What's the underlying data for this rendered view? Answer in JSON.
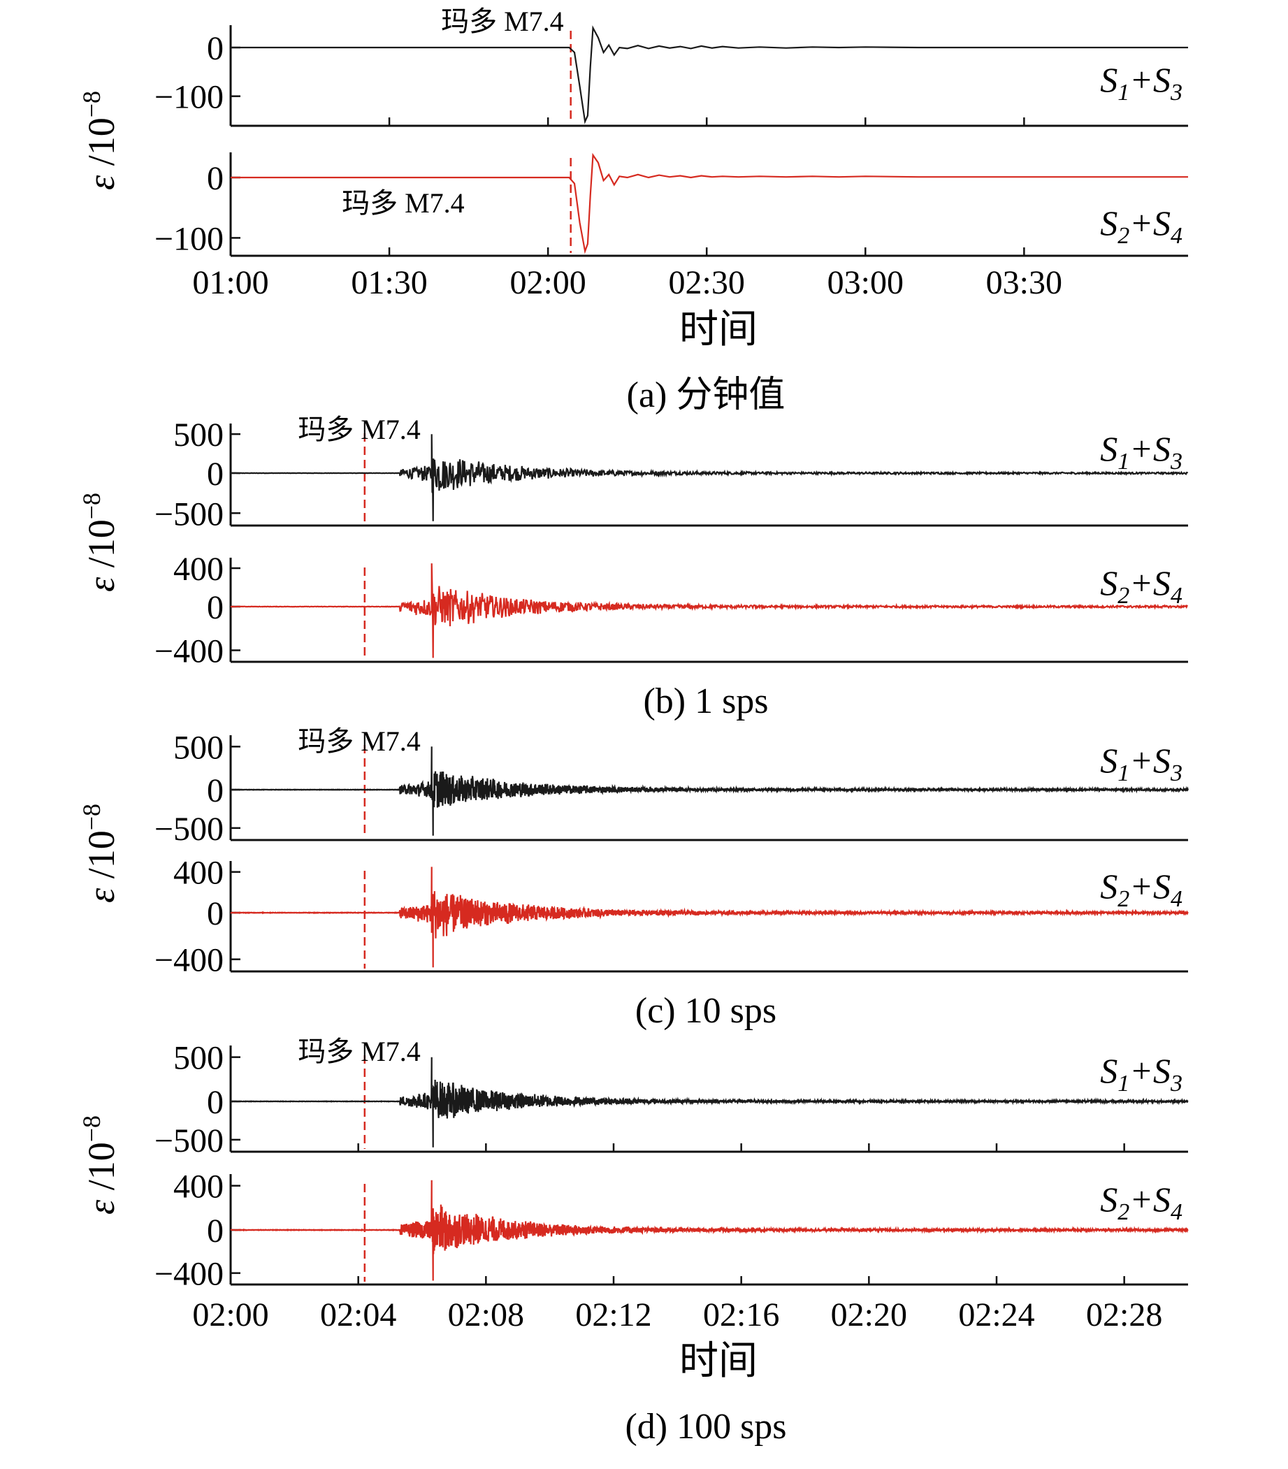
{
  "chart_data": [
    {
      "type": "line",
      "caption": "(a) 分钟值",
      "xlabel": "时间",
      "ylabel": "ε /10⁻⁸",
      "ylabel_parts": {
        "symbol": "ε",
        "unit": "/10",
        "exp": "−8"
      },
      "x_range_minutes": [
        0,
        181
      ],
      "x_ticks": [
        {
          "value": 0,
          "label": "01:00"
        },
        {
          "value": 30,
          "label": "01:30"
        },
        {
          "value": 60,
          "label": "02:00"
        },
        {
          "value": 90,
          "label": "02:30"
        },
        {
          "value": 120,
          "label": "03:00"
        },
        {
          "value": 150,
          "label": "03:30"
        }
      ],
      "event": {
        "label": "玛多 M7.4",
        "time_minutes": 64.3
      },
      "series": [
        {
          "name": "S1+S3",
          "legend": {
            "a": "S",
            "a_sub": "1",
            "plus": "+",
            "b": "S",
            "b_sub": "3"
          },
          "color": "#1a1a1a",
          "ylim": [
            -155,
            40
          ],
          "y_ticks": [
            {
              "value": 0,
              "label": "0"
            },
            {
              "value": -100,
              "label": "−100"
            }
          ],
          "label_event": true,
          "event_label_side": "above",
          "points": [
            [
              0,
              0
            ],
            [
              64,
              0
            ],
            [
              65,
              -10
            ],
            [
              66,
              -80
            ],
            [
              67,
              -152
            ],
            [
              67.5,
              -140
            ],
            [
              68,
              -40
            ],
            [
              68.5,
              40
            ],
            [
              69.5,
              20
            ],
            [
              70.5,
              -10
            ],
            [
              71.5,
              5
            ],
            [
              72.5,
              -15
            ],
            [
              73.5,
              0
            ],
            [
              75,
              -2
            ],
            [
              77,
              4
            ],
            [
              79,
              -2
            ],
            [
              81,
              3
            ],
            [
              83,
              -1
            ],
            [
              85,
              2
            ],
            [
              87,
              -2
            ],
            [
              89,
              3
            ],
            [
              91,
              -1
            ],
            [
              93,
              2
            ],
            [
              96,
              -1
            ],
            [
              100,
              1
            ],
            [
              105,
              -1
            ],
            [
              110,
              1
            ],
            [
              115,
              0
            ],
            [
              120,
              1
            ],
            [
              130,
              0
            ],
            [
              145,
              0
            ],
            [
              160,
              0
            ],
            [
              181,
              0
            ]
          ]
        },
        {
          "name": "S2+S4",
          "legend": {
            "a": "S",
            "a_sub": "2",
            "plus": "+",
            "b": "S",
            "b_sub": "4"
          },
          "color": "#d62a20",
          "ylim": [
            -125,
            38
          ],
          "y_ticks": [
            {
              "value": 0,
              "label": "0"
            },
            {
              "value": -100,
              "label": "−100"
            }
          ],
          "label_event": true,
          "event_label_side": "below-left",
          "points": [
            [
              0,
              0
            ],
            [
              64,
              0
            ],
            [
              65,
              -10
            ],
            [
              66,
              -75
            ],
            [
              67,
              -122
            ],
            [
              67.5,
              -110
            ],
            [
              68,
              -30
            ],
            [
              68.5,
              38
            ],
            [
              69.5,
              25
            ],
            [
              70.5,
              -5
            ],
            [
              71.5,
              5
            ],
            [
              72.5,
              -12
            ],
            [
              73.5,
              2
            ],
            [
              75,
              0
            ],
            [
              77,
              5
            ],
            [
              79,
              0
            ],
            [
              81,
              4
            ],
            [
              83,
              1
            ],
            [
              85,
              3
            ],
            [
              87,
              0
            ],
            [
              89,
              3
            ],
            [
              91,
              1
            ],
            [
              93,
              2
            ],
            [
              96,
              1
            ],
            [
              100,
              2
            ],
            [
              105,
              1
            ],
            [
              110,
              2
            ],
            [
              115,
              1
            ],
            [
              120,
              2
            ],
            [
              130,
              1
            ],
            [
              145,
              1
            ],
            [
              160,
              1
            ],
            [
              181,
              1
            ]
          ]
        }
      ]
    },
    {
      "type": "line",
      "caption": "(b) 1 sps",
      "ylabel": "ε /10⁻⁸",
      "ylabel_parts": {
        "symbol": "ε",
        "unit": "/10",
        "exp": "−8"
      },
      "x_range_minutes": [
        0,
        30
      ],
      "event": {
        "label": "玛多 M7.4",
        "time_minutes": 4.2
      },
      "waveform": {
        "onset_minutes": 5.3,
        "peak_minutes": 6.3,
        "decay_minutes": 2.5,
        "density": 1
      },
      "series": [
        {
          "name": "S1+S3",
          "color": "#1a1a1a",
          "legend": {
            "a": "S",
            "a_sub": "1",
            "plus": "+",
            "b": "S",
            "b_sub": "3"
          },
          "ylim": [
            -620,
            600
          ],
          "peak_max": 500,
          "peak_min": -600,
          "y_ticks": [
            {
              "value": 500,
              "label": "500"
            },
            {
              "value": 0,
              "label": "0"
            },
            {
              "value": -500,
              "label": "−500"
            }
          ],
          "label_event": true
        },
        {
          "name": "S2+S4",
          "color": "#d62a20",
          "legend": {
            "a": "S",
            "a_sub": "2",
            "plus": "+",
            "b": "S",
            "b_sub": "4"
          },
          "ylim": [
            -480,
            480
          ],
          "peak_max": 450,
          "peak_min": -470,
          "y_ticks": [
            {
              "value": 400,
              "label": "400"
            },
            {
              "value": 0,
              "label": "0"
            },
            {
              "value": -400,
              "label": "−400"
            }
          ],
          "label_event": false
        }
      ]
    },
    {
      "type": "line",
      "caption": "(c) 10 sps",
      "ylabel": "ε /10⁻⁸",
      "ylabel_parts": {
        "symbol": "ε",
        "unit": "/10",
        "exp": "−8"
      },
      "x_range_minutes": [
        0,
        30
      ],
      "event": {
        "label": "玛多 M7.4",
        "time_minutes": 4.2
      },
      "waveform": {
        "onset_minutes": 5.3,
        "peak_minutes": 6.3,
        "decay_minutes": 2.5,
        "density": 2
      },
      "series": [
        {
          "name": "S1+S3",
          "color": "#1a1a1a",
          "legend": {
            "a": "S",
            "a_sub": "1",
            "plus": "+",
            "b": "S",
            "b_sub": "3"
          },
          "ylim": [
            -620,
            600
          ],
          "peak_max": 500,
          "peak_min": -600,
          "y_ticks": [
            {
              "value": 500,
              "label": "500"
            },
            {
              "value": 0,
              "label": "0"
            },
            {
              "value": -500,
              "label": "−500"
            }
          ],
          "label_event": true
        },
        {
          "name": "S2+S4",
          "color": "#d62a20",
          "legend": {
            "a": "S",
            "a_sub": "2",
            "plus": "+",
            "b": "S",
            "b_sub": "4"
          },
          "ylim": [
            -480,
            480
          ],
          "peak_max": 450,
          "peak_min": -470,
          "y_ticks": [
            {
              "value": 400,
              "label": "400"
            },
            {
              "value": 0,
              "label": "0"
            },
            {
              "value": -400,
              "label": "−400"
            }
          ],
          "label_event": false
        }
      ]
    },
    {
      "type": "line",
      "caption": "(d) 100 sps",
      "xlabel": "时间",
      "ylabel": "ε /10⁻⁸",
      "ylabel_parts": {
        "symbol": "ε",
        "unit": "/10",
        "exp": "−8"
      },
      "x_range_minutes": [
        0,
        30
      ],
      "x_ticks": [
        {
          "value": 0,
          "label": "02:00"
        },
        {
          "value": 4,
          "label": "02:04"
        },
        {
          "value": 8,
          "label": "02:08"
        },
        {
          "value": 12,
          "label": "02:12"
        },
        {
          "value": 16,
          "label": "02:16"
        },
        {
          "value": 20,
          "label": "02:20"
        },
        {
          "value": 24,
          "label": "02:24"
        },
        {
          "value": 28,
          "label": "02:28"
        }
      ],
      "event": {
        "label": "玛多 M7.4",
        "time_minutes": 4.2
      },
      "waveform": {
        "onset_minutes": 5.3,
        "peak_minutes": 6.3,
        "decay_minutes": 2.5,
        "density": 2
      },
      "series": [
        {
          "name": "S1+S3",
          "color": "#1a1a1a",
          "legend": {
            "a": "S",
            "a_sub": "1",
            "plus": "+",
            "b": "S",
            "b_sub": "3"
          },
          "ylim": [
            -620,
            600
          ],
          "peak_max": 500,
          "peak_min": -600,
          "y_ticks": [
            {
              "value": 500,
              "label": "500"
            },
            {
              "value": 0,
              "label": "0"
            },
            {
              "value": -500,
              "label": "−500"
            }
          ],
          "label_event": true
        },
        {
          "name": "S2+S4",
          "color": "#d62a20",
          "legend": {
            "a": "S",
            "a_sub": "2",
            "plus": "+",
            "b": "S",
            "b_sub": "4"
          },
          "ylim": [
            -480,
            480
          ],
          "peak_max": 450,
          "peak_min": -470,
          "y_ticks": [
            {
              "value": 400,
              "label": "400"
            },
            {
              "value": 0,
              "label": "0"
            },
            {
              "value": -400,
              "label": "−400"
            }
          ],
          "label_event": false
        }
      ]
    }
  ]
}
